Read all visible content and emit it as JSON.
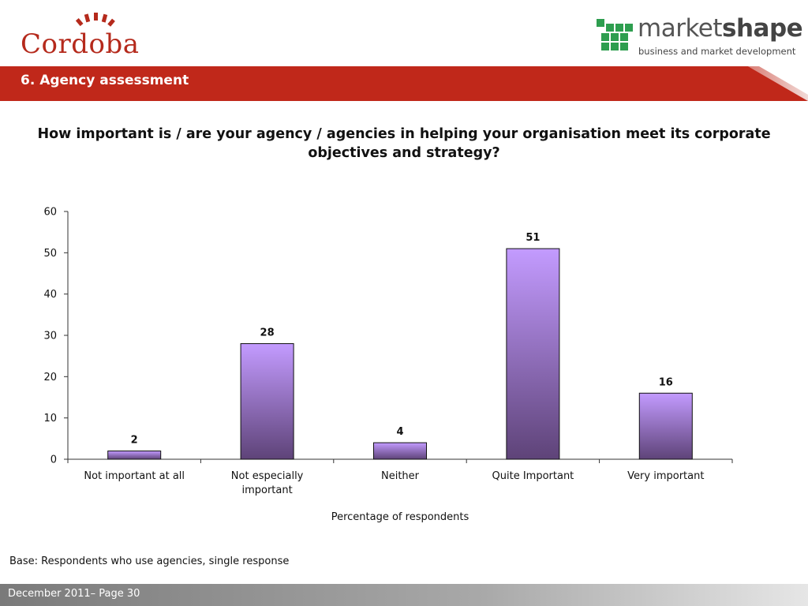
{
  "header": {
    "left_logo_text": "Cordoba",
    "right_logo_brand_light": "market",
    "right_logo_brand_bold": "shape",
    "right_logo_tagline": "business and market development",
    "section_title": "6.  Agency assessment"
  },
  "question": "How important is / are your agency / agencies in helping your organisation meet its corporate objectives and strategy?",
  "base_note": "Base: Respondents who use agencies, single response",
  "footer": {
    "text": "December 2011– Page 30"
  },
  "colors": {
    "brand_red": "#c0281a",
    "bar_top": "#c39bff",
    "bar_bottom": "#5e4378",
    "logo_green": "#2e9e4f"
  },
  "chart_data": {
    "type": "bar",
    "categories": [
      "Not important at all",
      "Not especially important",
      "Neither",
      "Quite Important",
      "Very important"
    ],
    "category_lines": [
      [
        "Not important at all"
      ],
      [
        "Not especially",
        "important"
      ],
      [
        "Neither"
      ],
      [
        "Quite Important"
      ],
      [
        "Very important"
      ]
    ],
    "values": [
      2,
      28,
      4,
      51,
      16
    ],
    "data_labels": [
      "2",
      "28",
      "4",
      "51",
      "16"
    ],
    "title": "",
    "xlabel": "Percentage of respondents",
    "ylabel": "",
    "ylim": [
      0,
      60
    ],
    "yticks": [
      0,
      10,
      20,
      30,
      40,
      50,
      60
    ],
    "ytick_labels": [
      "0",
      "10",
      "20",
      "30",
      "40",
      "50",
      "60"
    ],
    "grid": false,
    "legend": "none"
  }
}
